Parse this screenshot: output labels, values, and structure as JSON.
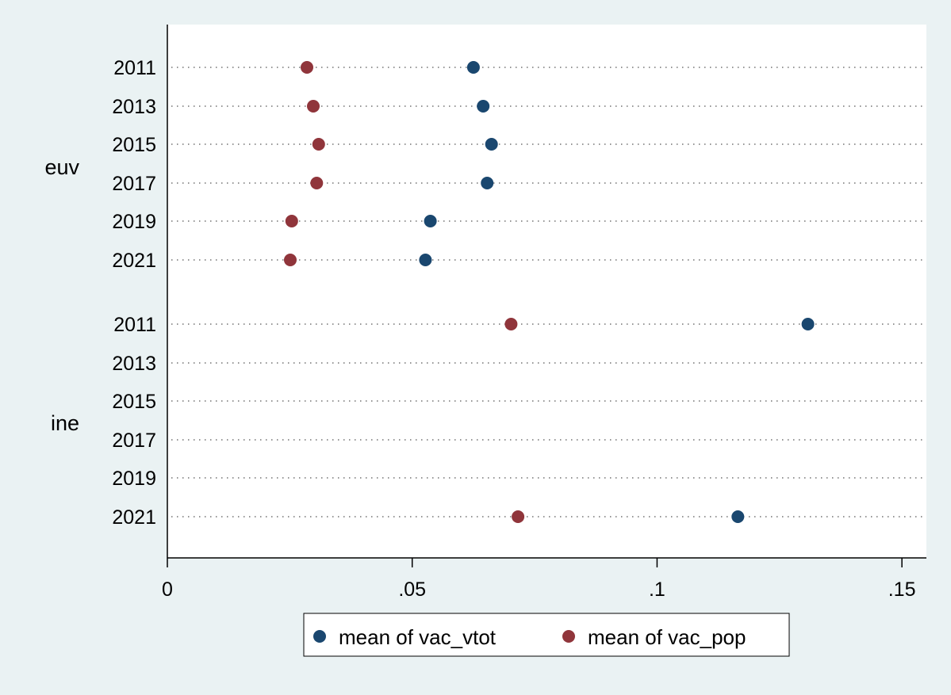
{
  "chart_data": {
    "type": "scatter",
    "orientation": "horizontal dot plot",
    "groups": [
      {
        "name": "euv",
        "categories": [
          "2011",
          "2013",
          "2015",
          "2017",
          "2019",
          "2021"
        ]
      },
      {
        "name": "ine",
        "categories": [
          "2011",
          "2013",
          "2015",
          "2017",
          "2019",
          "2021"
        ]
      }
    ],
    "series": [
      {
        "name": "mean of vac_vtot",
        "color": "#1a476f",
        "values": {
          "euv": [
            0.0625,
            0.0645,
            0.0662,
            0.0653,
            0.0537,
            0.0527
          ],
          "ine": [
            0.1308,
            null,
            null,
            null,
            null,
            0.1165
          ]
        }
      },
      {
        "name": "mean of vac_pop",
        "color": "#90353b",
        "values": {
          "euv": [
            0.0285,
            0.0298,
            0.0309,
            0.0305,
            0.0254,
            0.0251
          ],
          "ine": [
            0.0702,
            null,
            null,
            null,
            null,
            0.0716
          ]
        }
      }
    ],
    "x_axis": {
      "range": [
        0,
        0.155
      ],
      "ticks": [
        0,
        0.05,
        0.1,
        0.15
      ],
      "tick_labels": [
        "0",
        ".05",
        ".1",
        ".15"
      ]
    },
    "grid": "dotted horizontal lines at each category",
    "legend": {
      "position": "bottom",
      "entries": [
        "mean of vac_vtot",
        "mean of vac_pop"
      ]
    }
  }
}
